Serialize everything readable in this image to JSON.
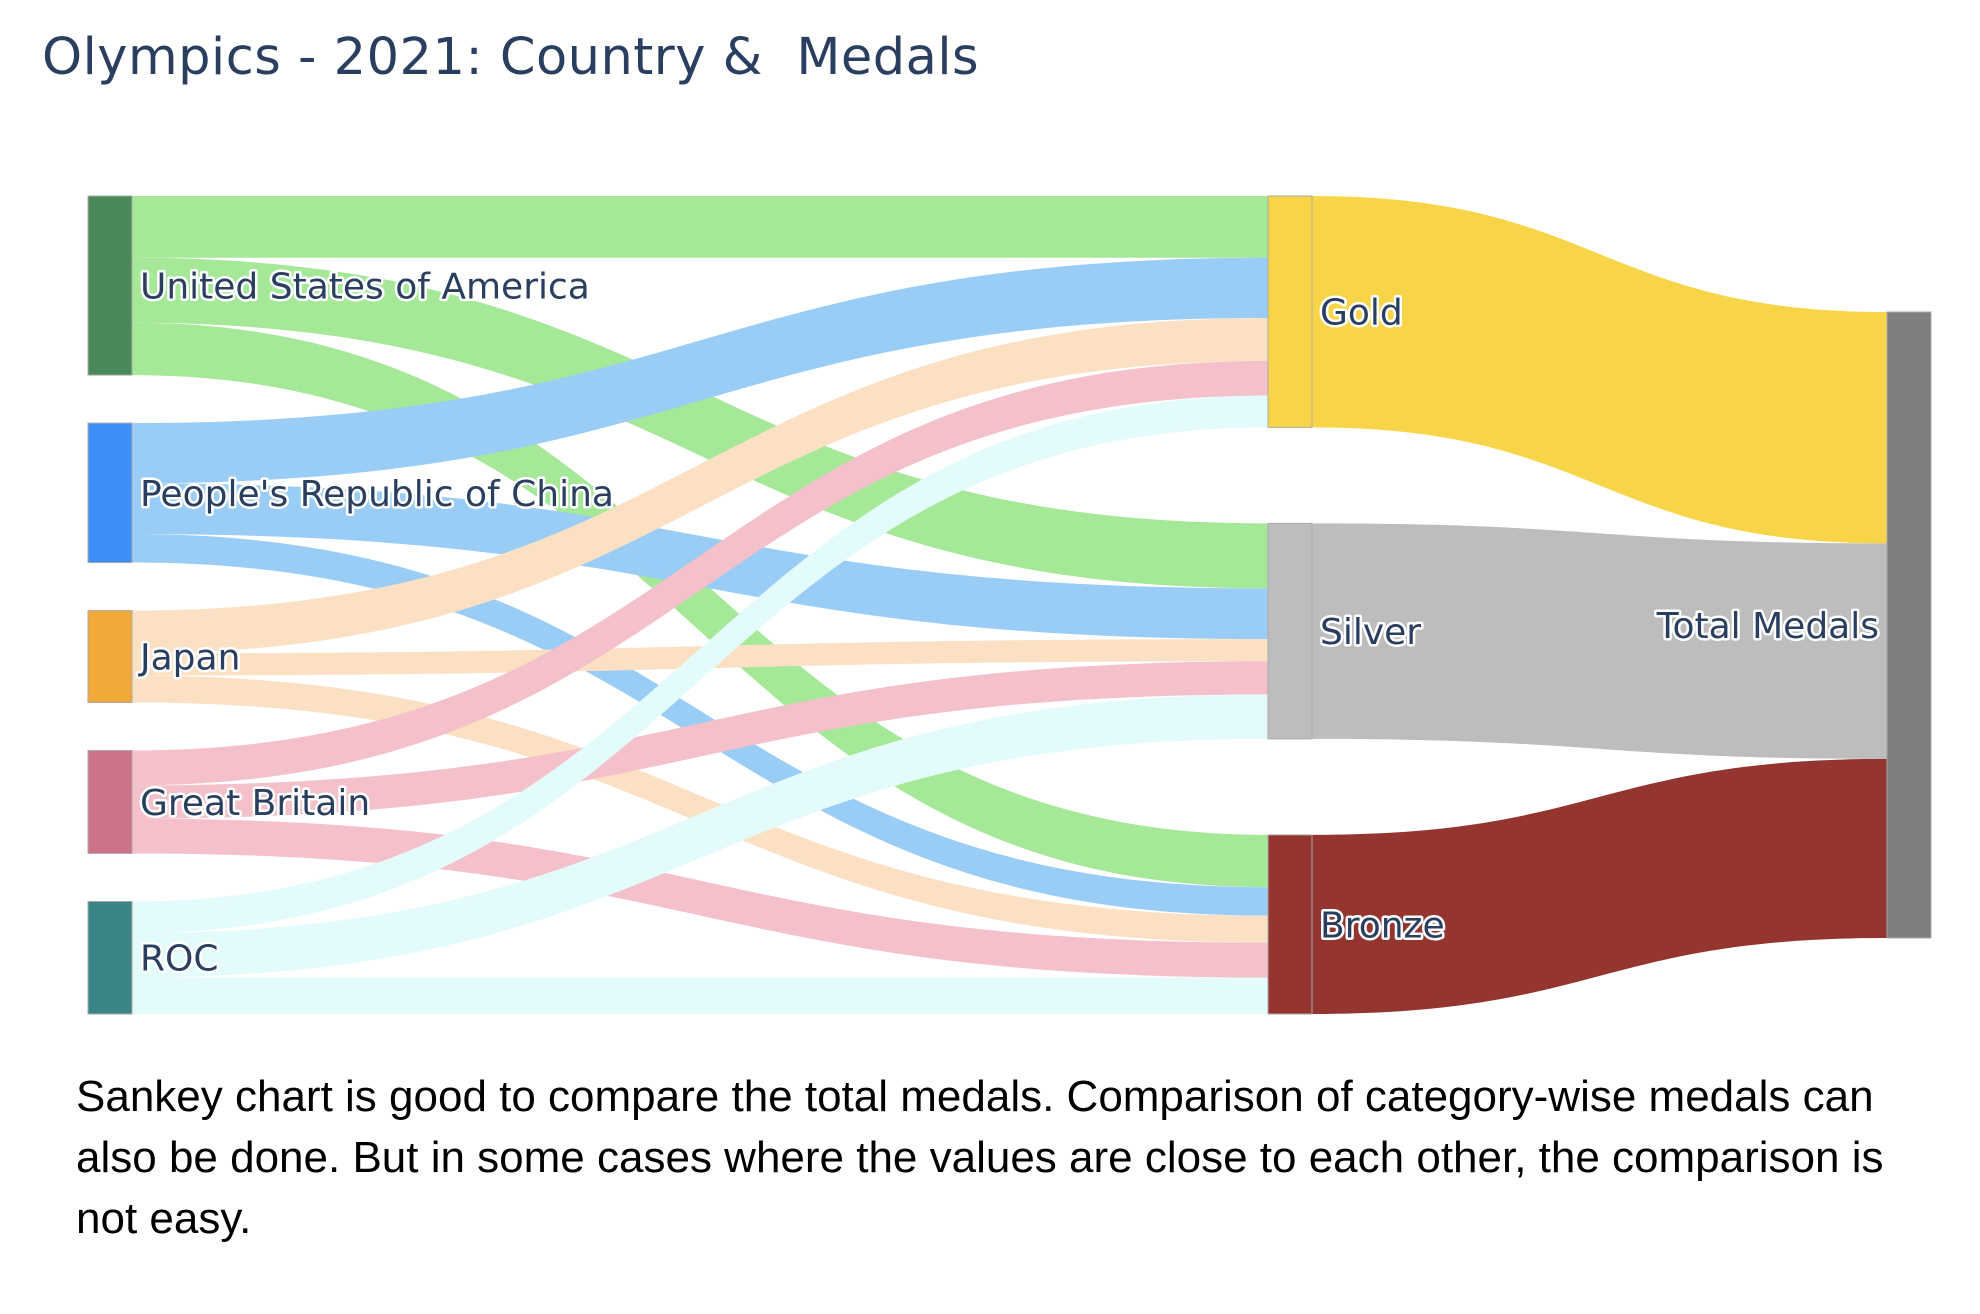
{
  "title": "Olympics - 2021: Country &  Medals",
  "caption": "Sankey chart is good to compare the total medals. Comparison of category-wise medals can also be done. But in some cases where the values are close to each other, the comparison is not easy.",
  "chart_data": {
    "type": "sankey",
    "title": "Olympics - 2021: Country &  Medals",
    "nodes": [
      {
        "id": "usa",
        "label": "United States of America",
        "color": "#4a8a5a"
      },
      {
        "id": "china",
        "label": "People's Republic of China",
        "color": "#3d8ef7"
      },
      {
        "id": "japan",
        "label": "Japan",
        "color": "#f2a93b"
      },
      {
        "id": "gb",
        "label": "Great Britain",
        "color": "#cc7389"
      },
      {
        "id": "roc",
        "label": "ROC",
        "color": "#3a8686"
      },
      {
        "id": "gold",
        "label": "Gold",
        "color": "#f8d548"
      },
      {
        "id": "silver",
        "label": "Silver",
        "color": "#bdbdbd"
      },
      {
        "id": "bronze",
        "label": "Bronze",
        "color": "#943530"
      },
      {
        "id": "total",
        "label": "Total Medals",
        "color": "#7f7f7f"
      }
    ],
    "links": [
      {
        "source": "usa",
        "target": "gold",
        "value": 39,
        "color": "#a4e898"
      },
      {
        "source": "usa",
        "target": "silver",
        "value": 41,
        "color": "#a4e898"
      },
      {
        "source": "usa",
        "target": "bronze",
        "value": 33,
        "color": "#a4e898"
      },
      {
        "source": "china",
        "target": "gold",
        "value": 38,
        "color": "#9acdf5"
      },
      {
        "source": "china",
        "target": "silver",
        "value": 32,
        "color": "#9acdf5"
      },
      {
        "source": "china",
        "target": "bronze",
        "value": 18,
        "color": "#9acdf5"
      },
      {
        "source": "japan",
        "target": "gold",
        "value": 27,
        "color": "#fce0c4"
      },
      {
        "source": "japan",
        "target": "silver",
        "value": 14,
        "color": "#fce0c4"
      },
      {
        "source": "japan",
        "target": "bronze",
        "value": 17,
        "color": "#fce0c4"
      },
      {
        "source": "gb",
        "target": "gold",
        "value": 22,
        "color": "#f4c0ca"
      },
      {
        "source": "gb",
        "target": "silver",
        "value": 21,
        "color": "#f4c0ca"
      },
      {
        "source": "gb",
        "target": "bronze",
        "value": 22,
        "color": "#f4c0ca"
      },
      {
        "source": "roc",
        "target": "gold",
        "value": 20,
        "color": "#e4fbfb"
      },
      {
        "source": "roc",
        "target": "silver",
        "value": 28,
        "color": "#e4fbfb"
      },
      {
        "source": "roc",
        "target": "bronze",
        "value": 23,
        "color": "#e4fbfb"
      },
      {
        "source": "gold",
        "target": "total",
        "value": 146,
        "color": "#f8d548"
      },
      {
        "source": "silver",
        "target": "total",
        "value": 136,
        "color": "#bdbdbd"
      },
      {
        "source": "bronze",
        "target": "total",
        "value": 113,
        "color": "#943530"
      }
    ]
  }
}
